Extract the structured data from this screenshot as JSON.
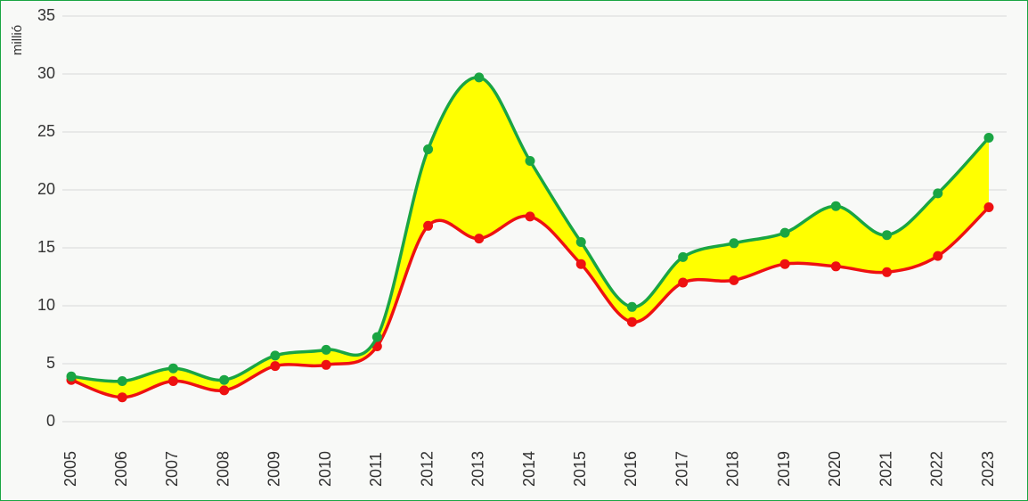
{
  "chart_data": {
    "type": "line",
    "y_label": "millió",
    "categories": [
      "2005",
      "2006",
      "2007",
      "2008",
      "2009",
      "2010",
      "2011",
      "2012",
      "2013",
      "2014",
      "2015",
      "2016",
      "2017",
      "2018",
      "2019",
      "2020",
      "2021",
      "2022",
      "2023"
    ],
    "series": [
      {
        "color": "#1aa543",
        "values": [
          3.9,
          3.5,
          4.6,
          3.6,
          5.7,
          6.2,
          7.3,
          23.5,
          29.7,
          22.5,
          15.5,
          9.9,
          14.2,
          15.4,
          16.3,
          18.6,
          16.1,
          19.7,
          24.5
        ]
      },
      {
        "color": "#ee1111",
        "values": [
          3.6,
          2.1,
          3.5,
          2.7,
          4.8,
          4.9,
          6.5,
          16.9,
          15.8,
          17.7,
          13.6,
          8.6,
          12.0,
          12.2,
          13.6,
          13.4,
          12.9,
          14.3,
          18.5
        ]
      }
    ],
    "fill_between_color": "#ffff00",
    "ylim": [
      0,
      35
    ],
    "yticks": [
      0,
      5,
      10,
      15,
      20,
      25,
      30,
      35
    ],
    "grid": true
  }
}
